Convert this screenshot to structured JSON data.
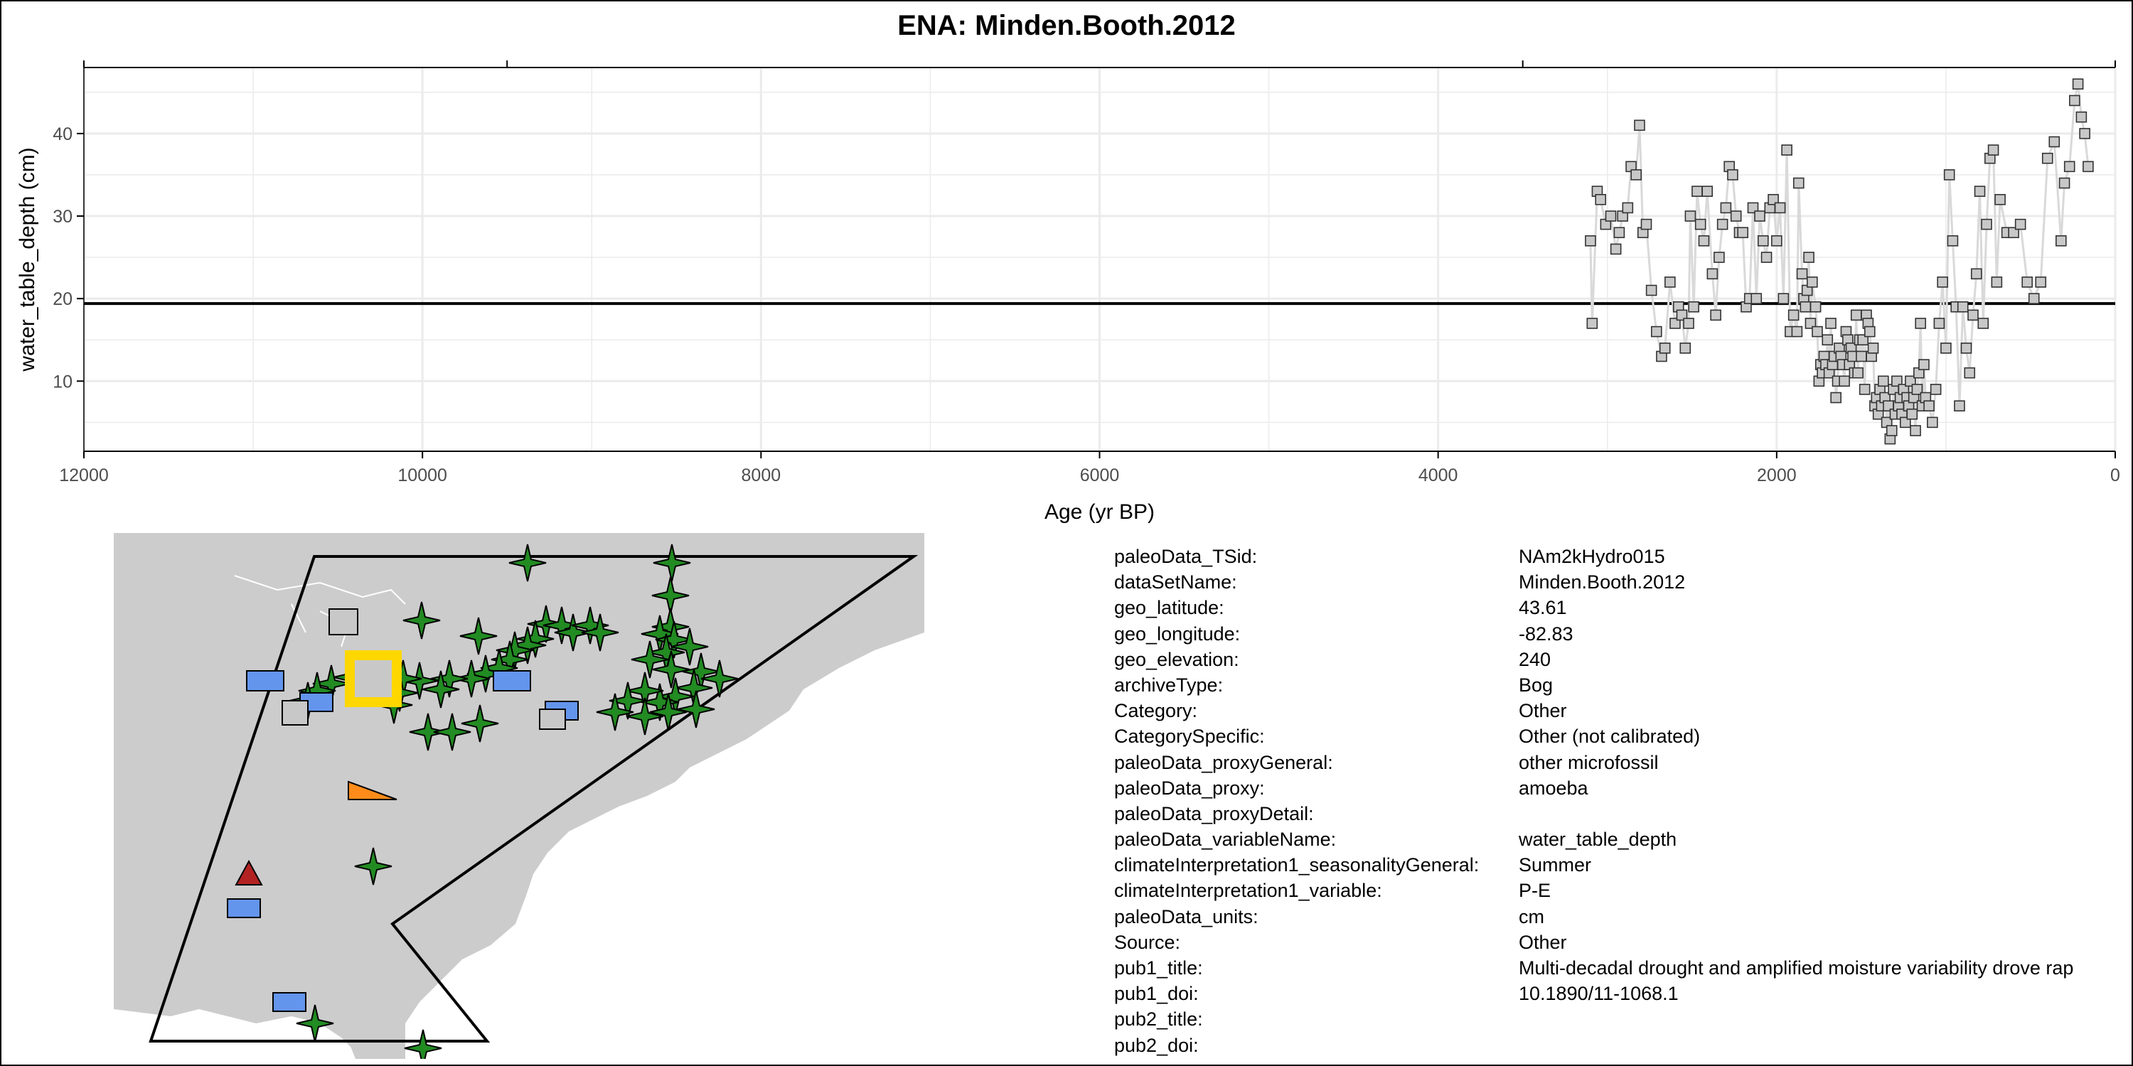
{
  "title": "ENA: Minden.Booth.2012",
  "chart_data": {
    "type": "line",
    "title": "ENA: Minden.Booth.2012",
    "xlabel": "Age (yr BP)",
    "ylabel": "water_table_depth (cm)",
    "xlim": [
      12000,
      0
    ],
    "ylim": [
      1.5,
      48
    ],
    "x_reversed": true,
    "x_ticks": [
      12000,
      10000,
      8000,
      6000,
      4000,
      2000,
      0
    ],
    "y_ticks": [
      10,
      20,
      30,
      40
    ],
    "grid": true,
    "mean_line": 19.4,
    "series": [
      {
        "marker": "square",
        "color": "#c8c8c8",
        "line_color": "#d9d9d9",
        "points": [
          [
            3100,
            27
          ],
          [
            3090,
            17
          ],
          [
            3060,
            33
          ],
          [
            3040,
            32
          ],
          [
            3010,
            29
          ],
          [
            2980,
            30
          ],
          [
            2950,
            26
          ],
          [
            2930,
            28
          ],
          [
            2910,
            30
          ],
          [
            2880,
            31
          ],
          [
            2860,
            36
          ],
          [
            2830,
            35
          ],
          [
            2810,
            41
          ],
          [
            2790,
            28
          ],
          [
            2770,
            29
          ],
          [
            2740,
            21
          ],
          [
            2710,
            16
          ],
          [
            2680,
            13
          ],
          [
            2660,
            14
          ],
          [
            2630,
            22
          ],
          [
            2600,
            17
          ],
          [
            2580,
            19
          ],
          [
            2560,
            18
          ],
          [
            2540,
            14
          ],
          [
            2520,
            17
          ],
          [
            2510,
            30
          ],
          [
            2490,
            19
          ],
          [
            2470,
            33
          ],
          [
            2450,
            29
          ],
          [
            2430,
            27
          ],
          [
            2410,
            33
          ],
          [
            2380,
            23
          ],
          [
            2360,
            18
          ],
          [
            2340,
            25
          ],
          [
            2320,
            29
          ],
          [
            2300,
            31
          ],
          [
            2280,
            36
          ],
          [
            2260,
            35
          ],
          [
            2240,
            30
          ],
          [
            2220,
            28
          ],
          [
            2200,
            28
          ],
          [
            2180,
            19
          ],
          [
            2160,
            20
          ],
          [
            2140,
            31
          ],
          [
            2120,
            20
          ],
          [
            2100,
            30
          ],
          [
            2080,
            27
          ],
          [
            2060,
            25
          ],
          [
            2040,
            31
          ],
          [
            2020,
            32
          ],
          [
            2000,
            27
          ],
          [
            1980,
            31
          ],
          [
            1960,
            20
          ],
          [
            1940,
            38
          ],
          [
            1920,
            16
          ],
          [
            1900,
            18
          ],
          [
            1880,
            16
          ],
          [
            1870,
            34
          ],
          [
            1850,
            23
          ],
          [
            1840,
            20
          ],
          [
            1830,
            19
          ],
          [
            1820,
            21
          ],
          [
            1810,
            25
          ],
          [
            1800,
            17
          ],
          [
            1790,
            22
          ],
          [
            1770,
            19
          ],
          [
            1760,
            16
          ],
          [
            1750,
            10
          ],
          [
            1740,
            12
          ],
          [
            1730,
            11
          ],
          [
            1720,
            13
          ],
          [
            1710,
            12
          ],
          [
            1700,
            15
          ],
          [
            1690,
            11
          ],
          [
            1680,
            17
          ],
          [
            1670,
            12
          ],
          [
            1660,
            13
          ],
          [
            1650,
            8
          ],
          [
            1640,
            10
          ],
          [
            1630,
            14
          ],
          [
            1620,
            13
          ],
          [
            1610,
            12
          ],
          [
            1600,
            10
          ],
          [
            1590,
            16
          ],
          [
            1580,
            15
          ],
          [
            1570,
            12
          ],
          [
            1560,
            14
          ],
          [
            1550,
            13
          ],
          [
            1540,
            11
          ],
          [
            1530,
            18
          ],
          [
            1520,
            11
          ],
          [
            1510,
            15
          ],
          [
            1500,
            13
          ],
          [
            1490,
            15
          ],
          [
            1480,
            9
          ],
          [
            1470,
            18
          ],
          [
            1460,
            17
          ],
          [
            1450,
            16
          ],
          [
            1440,
            13
          ],
          [
            1430,
            14
          ],
          [
            1420,
            7
          ],
          [
            1410,
            8
          ],
          [
            1400,
            6
          ],
          [
            1390,
            9
          ],
          [
            1380,
            7
          ],
          [
            1370,
            10
          ],
          [
            1360,
            8
          ],
          [
            1350,
            5
          ],
          [
            1340,
            7
          ],
          [
            1330,
            3
          ],
          [
            1320,
            4
          ],
          [
            1310,
            9
          ],
          [
            1300,
            6
          ],
          [
            1290,
            10
          ],
          [
            1280,
            7
          ],
          [
            1270,
            8
          ],
          [
            1260,
            6
          ],
          [
            1250,
            9
          ],
          [
            1240,
            5
          ],
          [
            1230,
            8
          ],
          [
            1220,
            7
          ],
          [
            1210,
            10
          ],
          [
            1200,
            6
          ],
          [
            1190,
            8
          ],
          [
            1180,
            4
          ],
          [
            1170,
            9
          ],
          [
            1160,
            11
          ],
          [
            1150,
            17
          ],
          [
            1140,
            7
          ],
          [
            1130,
            12
          ],
          [
            1120,
            8
          ],
          [
            1100,
            7
          ],
          [
            1080,
            5
          ],
          [
            1060,
            9
          ],
          [
            1040,
            17
          ],
          [
            1020,
            22
          ],
          [
            1000,
            14
          ],
          [
            980,
            35
          ],
          [
            960,
            27
          ],
          [
            940,
            19
          ],
          [
            920,
            7
          ],
          [
            900,
            19
          ],
          [
            880,
            14
          ],
          [
            860,
            11
          ],
          [
            840,
            18
          ],
          [
            820,
            23
          ],
          [
            800,
            33
          ],
          [
            780,
            17
          ],
          [
            760,
            29
          ],
          [
            740,
            37
          ],
          [
            720,
            38
          ],
          [
            700,
            22
          ],
          [
            680,
            32
          ],
          [
            640,
            28
          ],
          [
            600,
            28
          ],
          [
            560,
            29
          ],
          [
            520,
            22
          ],
          [
            480,
            20
          ],
          [
            440,
            22
          ],
          [
            400,
            37
          ],
          [
            360,
            39
          ],
          [
            320,
            27
          ],
          [
            300,
            34
          ],
          [
            270,
            36
          ],
          [
            240,
            44
          ],
          [
            220,
            46
          ],
          [
            200,
            42
          ],
          [
            180,
            40
          ],
          [
            160,
            36
          ]
        ]
      }
    ]
  },
  "metadata": [
    {
      "key": "paleoData_TSid:",
      "value": "NAm2kHydro015"
    },
    {
      "key": "dataSetName:",
      "value": "Minden.Booth.2012"
    },
    {
      "key": "geo_latitude:",
      "value": "43.61"
    },
    {
      "key": "geo_longitude:",
      "value": "-82.83"
    },
    {
      "key": "geo_elevation:",
      "value": "240"
    },
    {
      "key": "archiveType:",
      "value": "Bog"
    },
    {
      "key": "Category:",
      "value": "Other"
    },
    {
      "key": "CategorySpecific:",
      "value": "Other (not calibrated)"
    },
    {
      "key": "paleoData_proxyGeneral:",
      "value": "other microfossil"
    },
    {
      "key": "paleoData_proxy:",
      "value": "amoeba"
    },
    {
      "key": "paleoData_proxyDetail:",
      "value": ""
    },
    {
      "key": "paleoData_variableName:",
      "value": "water_table_depth"
    },
    {
      "key": "climateInterpretation1_seasonalityGeneral:",
      "value": "Summer"
    },
    {
      "key": "climateInterpretation1_variable:",
      "value": "P-E"
    },
    {
      "key": "paleoData_units:",
      "value": "cm"
    },
    {
      "key": "Source:",
      "value": "Other"
    },
    {
      "key": "pub1_title:",
      "value": "Multi-decadal drought and amplified moisture variability drove rap"
    },
    {
      "key": "pub1_doi:",
      "value": "10.1890/11-1068.1"
    },
    {
      "key": "pub2_title:",
      "value": ""
    },
    {
      "key": "pub2_doi:",
      "value": ""
    }
  ],
  "map": {
    "land_color": "#cccccc",
    "region_outline_color": "#000000",
    "site_highlight_color": "#ffd700",
    "marker_colors": {
      "star": "#228b22",
      "rect": "#6495ed",
      "square": "#c8c8c8",
      "triangle_orange": "#ff8c1a",
      "triangle_red": "#b22222"
    }
  }
}
